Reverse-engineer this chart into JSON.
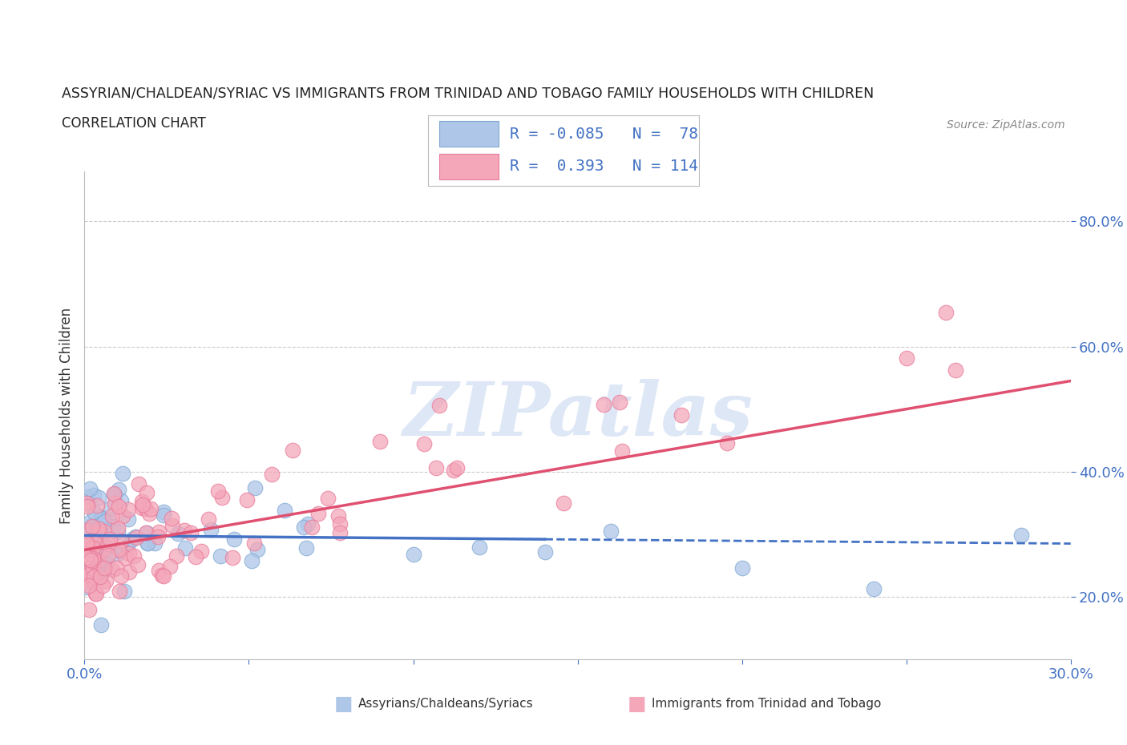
{
  "title": "ASSYRIAN/CHALDEAN/SYRIAC VS IMMIGRANTS FROM TRINIDAD AND TOBAGO FAMILY HOUSEHOLDS WITH CHILDREN",
  "subtitle": "CORRELATION CHART",
  "source": "Source: ZipAtlas.com",
  "ylabel": "Family Households with Children",
  "xlim": [
    0.0,
    0.3
  ],
  "ylim": [
    0.1,
    0.88
  ],
  "ytick_vals": [
    0.2,
    0.4,
    0.6,
    0.8
  ],
  "ytick_labels": [
    "20.0%",
    "40.0%",
    "60.0%",
    "80.0%"
  ],
  "blue_color": "#aec6e8",
  "blue_edge_color": "#7fa8d3",
  "pink_color": "#f4a7b9",
  "pink_edge_color": "#e87a9a",
  "blue_line_color": "#4472c4",
  "pink_line_color": "#e05070",
  "blue_R": -0.085,
  "blue_N": 78,
  "pink_R": 0.393,
  "pink_N": 114,
  "legend_label_blue": "Assyrians/Chaldeans/Syriacs",
  "legend_label_pink": "Immigrants from Trinidad and Tobago",
  "watermark_text": "ZIPatlas",
  "watermark_color": "#c8d8f0",
  "background_color": "#ffffff",
  "grid_color": "#cccccc",
  "tick_color": "#4472c4",
  "title_color": "#222222",
  "source_color": "#888888"
}
